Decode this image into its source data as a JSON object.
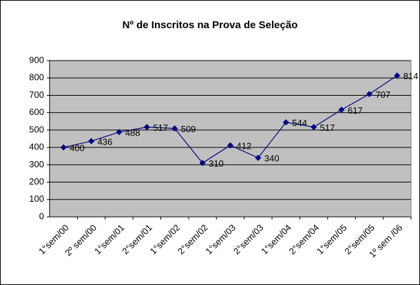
{
  "chart_data": {
    "type": "line",
    "title": "Nº de Inscritos na Prova de Seleção",
    "categories": [
      "1°sem/00",
      "2º sem/00",
      "1°sem/01",
      "2°sem/01",
      "1°sem/02",
      "2°sem/02",
      "1°sem/03",
      "2°sem/03",
      "1°sem/04",
      "2°sem/04",
      "1°sem/05",
      "2°sem/05",
      "1º sem /06"
    ],
    "series": [
      {
        "color": "#000080",
        "values": [
          400,
          436,
          488,
          517,
          509,
          310,
          412,
          340,
          544,
          517,
          617,
          707,
          814
        ]
      }
    ],
    "ylim": [
      0,
      900
    ],
    "yticks": [
      0,
      100,
      200,
      300,
      400,
      500,
      600,
      700,
      800,
      900
    ],
    "grid": true
  }
}
